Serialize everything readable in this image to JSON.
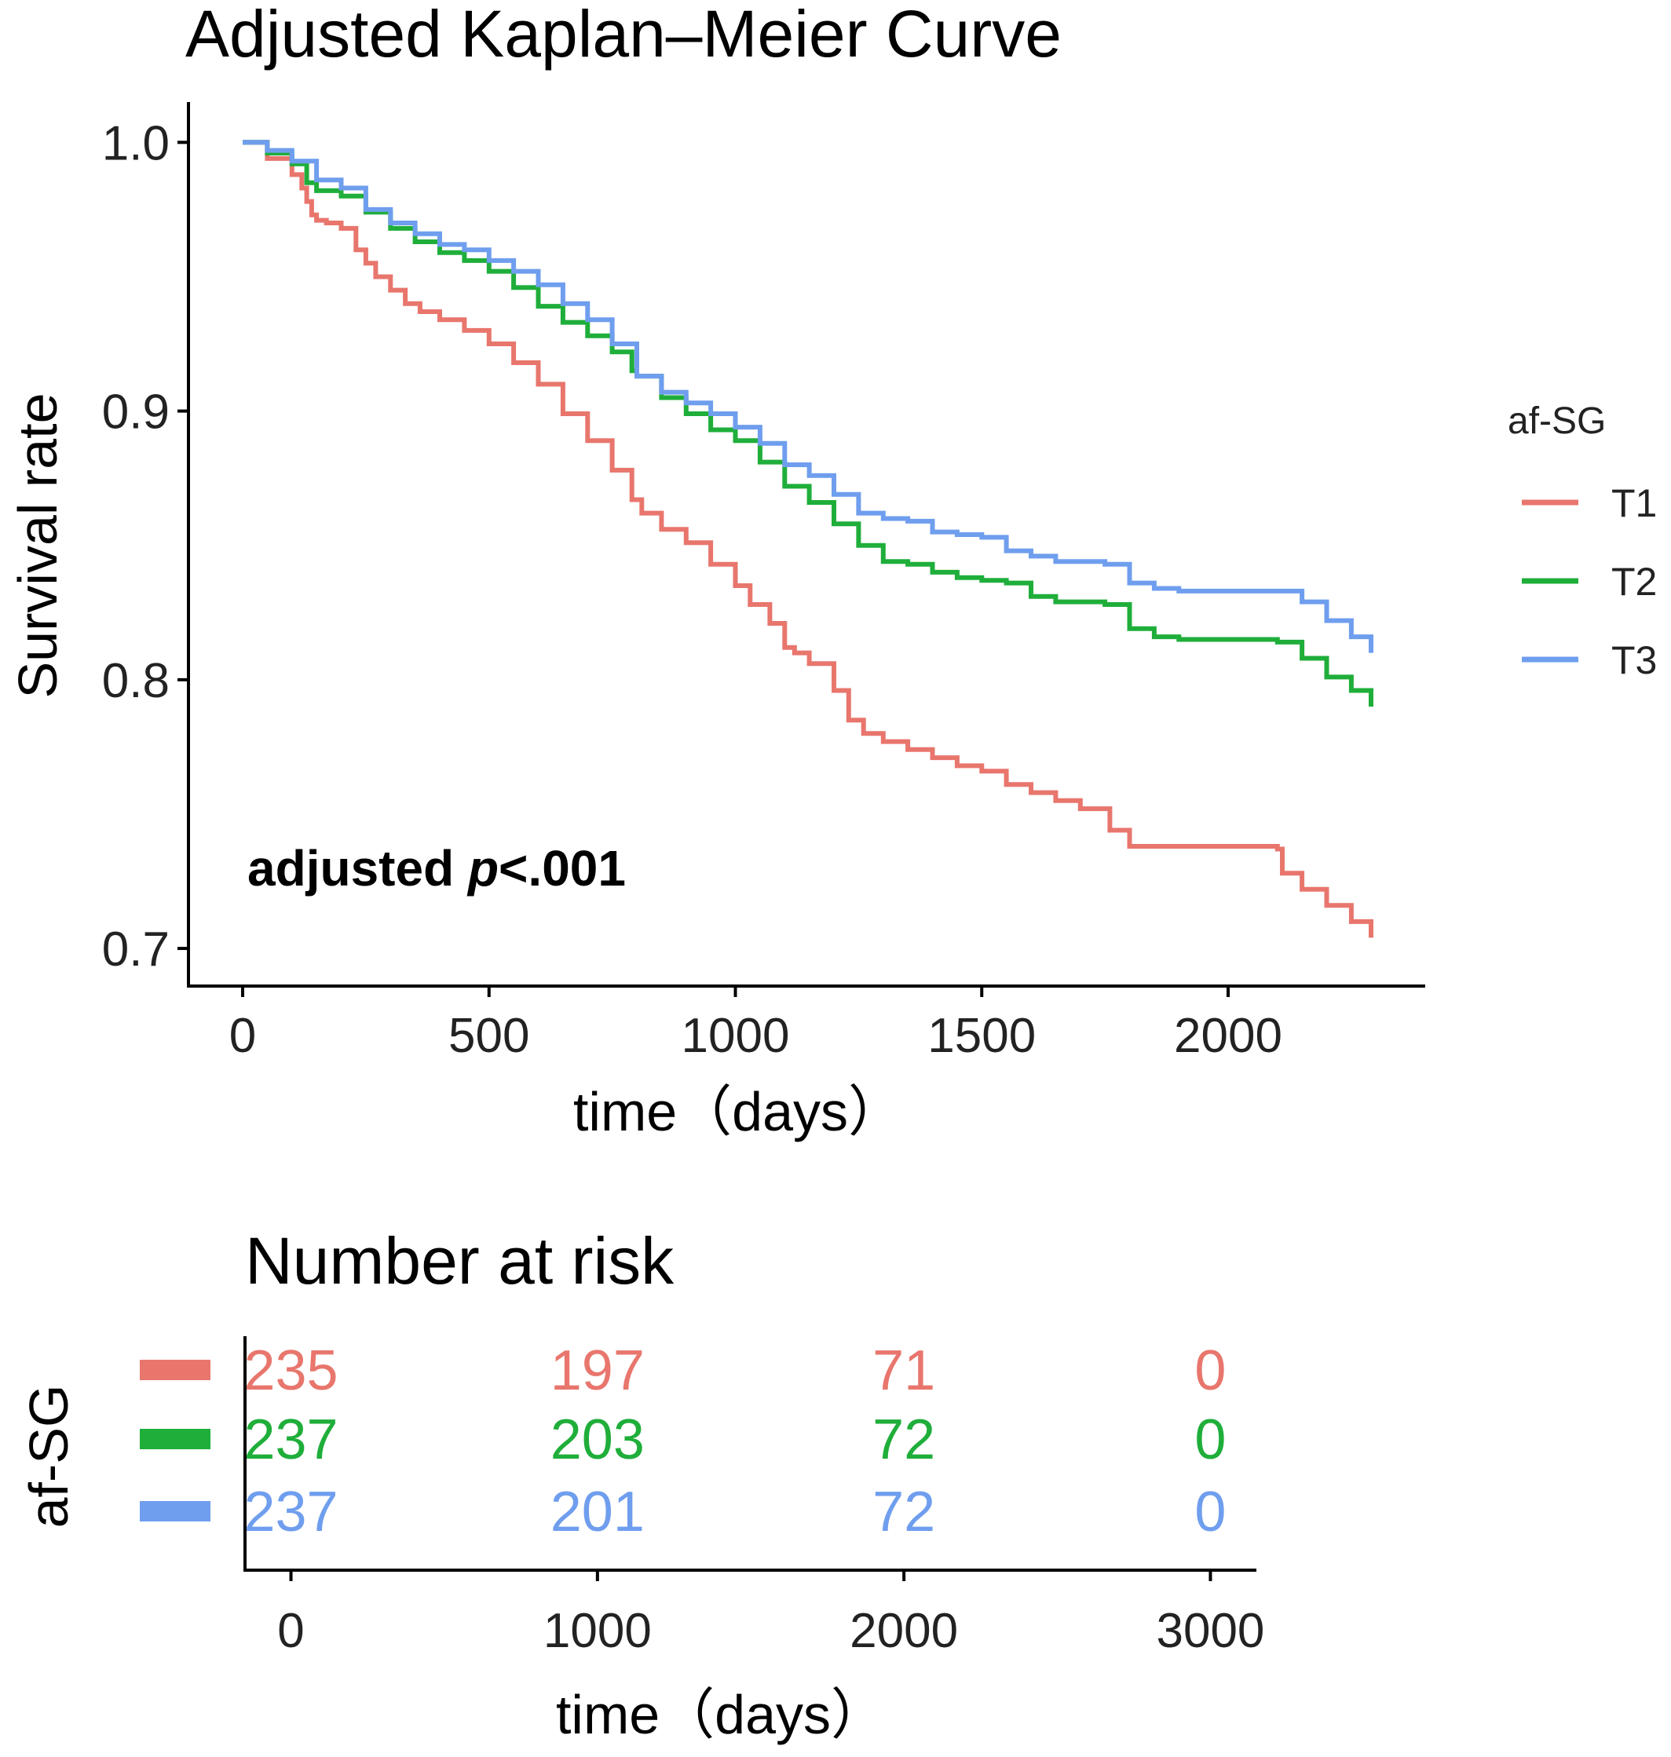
{
  "chart_data": [
    {
      "type": "line",
      "title": "Adjusted Kaplan–Meier Curve",
      "xlabel": "time（days）",
      "ylabel": "Survival rate",
      "xlim": [
        -110,
        2400
      ],
      "ylim": [
        0.686,
        1.015
      ],
      "xticks": [
        0,
        500,
        1000,
        1500,
        2000
      ],
      "yticks": [
        0.7,
        0.8,
        0.9,
        1.0
      ],
      "ytick_labels": [
        "0.7",
        "0.8",
        "0.9",
        "1.0"
      ],
      "annotation_prefix": "adjusted ",
      "annotation_p": "p",
      "annotation_suffix": "<.001",
      "legend": {
        "title": "af-SG",
        "position": "right"
      },
      "series": [
        {
          "name": "T1",
          "color": "#E8766D",
          "x": [
            0,
            50,
            100,
            120,
            130,
            140,
            150,
            170,
            200,
            230,
            250,
            270,
            300,
            330,
            360,
            400,
            450,
            500,
            550,
            600,
            650,
            700,
            750,
            790,
            810,
            850,
            900,
            950,
            1000,
            1030,
            1070,
            1100,
            1120,
            1150,
            1200,
            1230,
            1260,
            1300,
            1350,
            1400,
            1450,
            1500,
            1550,
            1600,
            1650,
            1700,
            1750,
            1760,
            1800,
            1850,
            1900,
            1950,
            2000,
            2050,
            2100,
            2110,
            2150,
            2200,
            2250,
            2290
          ],
          "y": [
            1.0,
            0.994,
            0.988,
            0.983,
            0.978,
            0.973,
            0.971,
            0.97,
            0.968,
            0.96,
            0.955,
            0.95,
            0.945,
            0.94,
            0.937,
            0.934,
            0.93,
            0.925,
            0.918,
            0.91,
            0.899,
            0.889,
            0.878,
            0.867,
            0.862,
            0.856,
            0.851,
            0.843,
            0.835,
            0.828,
            0.821,
            0.812,
            0.81,
            0.806,
            0.796,
            0.785,
            0.78,
            0.777,
            0.774,
            0.771,
            0.768,
            0.766,
            0.761,
            0.758,
            0.755,
            0.752,
            0.752,
            0.744,
            0.738,
            0.738,
            0.738,
            0.738,
            0.738,
            0.738,
            0.737,
            0.728,
            0.722,
            0.716,
            0.71,
            0.704
          ]
        },
        {
          "name": "T2",
          "color": "#1FAE3A",
          "x": [
            0,
            50,
            100,
            130,
            150,
            200,
            250,
            300,
            350,
            400,
            450,
            500,
            550,
            600,
            650,
            700,
            750,
            790,
            800,
            850,
            900,
            950,
            1000,
            1050,
            1100,
            1150,
            1200,
            1250,
            1300,
            1350,
            1400,
            1450,
            1500,
            1550,
            1600,
            1650,
            1700,
            1750,
            1800,
            1850,
            1900,
            1950,
            2000,
            2050,
            2100,
            2150,
            2200,
            2250,
            2290
          ],
          "y": [
            1.0,
            0.996,
            0.992,
            0.985,
            0.982,
            0.98,
            0.974,
            0.968,
            0.963,
            0.959,
            0.956,
            0.952,
            0.946,
            0.939,
            0.933,
            0.928,
            0.922,
            0.915,
            0.913,
            0.905,
            0.899,
            0.893,
            0.889,
            0.881,
            0.872,
            0.866,
            0.858,
            0.85,
            0.844,
            0.843,
            0.84,
            0.838,
            0.837,
            0.836,
            0.831,
            0.829,
            0.829,
            0.828,
            0.819,
            0.816,
            0.815,
            0.815,
            0.815,
            0.815,
            0.814,
            0.808,
            0.801,
            0.796,
            0.79
          ]
        },
        {
          "name": "T3",
          "color": "#6F9EEE",
          "x": [
            0,
            50,
            100,
            150,
            200,
            250,
            300,
            350,
            400,
            450,
            500,
            550,
            600,
            650,
            700,
            750,
            800,
            850,
            900,
            950,
            1000,
            1050,
            1100,
            1150,
            1200,
            1250,
            1300,
            1350,
            1400,
            1450,
            1500,
            1550,
            1600,
            1650,
            1700,
            1750,
            1800,
            1850,
            1900,
            1950,
            2000,
            2050,
            2100,
            2150,
            2200,
            2250,
            2290
          ],
          "y": [
            1.0,
            0.997,
            0.993,
            0.986,
            0.983,
            0.975,
            0.97,
            0.966,
            0.962,
            0.96,
            0.956,
            0.952,
            0.947,
            0.94,
            0.934,
            0.925,
            0.913,
            0.907,
            0.903,
            0.899,
            0.894,
            0.888,
            0.88,
            0.876,
            0.869,
            0.862,
            0.86,
            0.859,
            0.855,
            0.854,
            0.853,
            0.848,
            0.846,
            0.844,
            0.844,
            0.843,
            0.836,
            0.834,
            0.833,
            0.833,
            0.833,
            0.833,
            0.833,
            0.829,
            0.822,
            0.816,
            0.81
          ]
        }
      ]
    },
    {
      "type": "table",
      "title": "Number at risk",
      "xlabel": "time（days）",
      "ylabel": "af-SG",
      "xlim": [
        -150,
        3150
      ],
      "xticks": [
        0,
        1000,
        2000,
        3000
      ],
      "rows": [
        {
          "group": "T1",
          "color": "#E8766D",
          "values": [
            235,
            197,
            71,
            0
          ]
        },
        {
          "group": "T2",
          "color": "#1FAE3A",
          "values": [
            237,
            203,
            72,
            0
          ]
        },
        {
          "group": "T3",
          "color": "#6F9EEE",
          "values": [
            237,
            201,
            72,
            0
          ]
        }
      ]
    }
  ]
}
